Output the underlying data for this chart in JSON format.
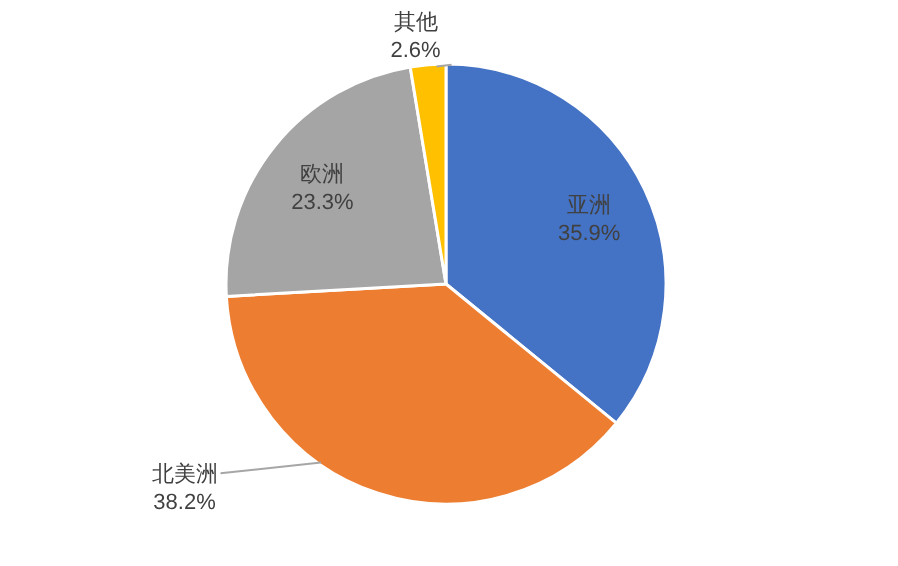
{
  "chart_data": {
    "type": "pie",
    "categories": [
      "亚洲",
      "北美洲",
      "欧洲",
      "其他"
    ],
    "values": [
      35.9,
      38.2,
      23.3,
      2.6
    ],
    "colors": [
      "#4472c4",
      "#ed7d31",
      "#a5a5a5",
      "#ffc000"
    ],
    "value_labels": [
      "35.9%",
      "38.2%",
      "23.3%",
      "2.6%"
    ]
  }
}
